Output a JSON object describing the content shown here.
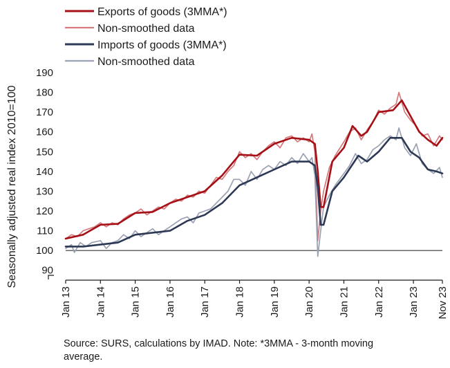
{
  "colors": {
    "exports_smooth": "#a50f15",
    "exports_raw": "#d4797d",
    "imports_smooth": "#2c3854",
    "imports_raw": "#99a1b3",
    "baseline": "#1a1a1a"
  },
  "chart_data": {
    "type": "line",
    "ylabel": "Seasonally adjusted real index 2010=100",
    "xlabel": "",
    "ylim": [
      85,
      190
    ],
    "y_ticks": [
      90,
      100,
      110,
      120,
      130,
      140,
      150,
      160,
      170,
      180,
      190
    ],
    "y_tick_labels": [
      "90",
      "100",
      "110",
      "120",
      "130",
      "140",
      "150",
      "160",
      "170",
      "180",
      "190"
    ],
    "x_tick_labels": [
      "Jan 13",
      "Jan 14",
      "Jan 15",
      "Jan 16",
      "Jan 17",
      "Jan 18",
      "Jan 19",
      "Jan 20",
      "Jan 21",
      "Jan 22",
      "Jan 23",
      "Nov 23"
    ],
    "x_range": [
      "2013-01",
      "2023-11"
    ],
    "reference_line": 100,
    "grid": false,
    "legend_position": "top-left",
    "series": [
      {
        "name": "Exports of goods (3MMA*)",
        "color": "exports_smooth",
        "style": "thick",
        "points": [
          [
            "2013-01",
            106
          ],
          [
            "2013-07",
            108
          ],
          [
            "2014-01",
            113
          ],
          [
            "2014-07",
            113.5
          ],
          [
            "2015-01",
            119
          ],
          [
            "2015-07",
            119.5
          ],
          [
            "2016-01",
            124
          ],
          [
            "2016-07",
            127
          ],
          [
            "2017-01",
            130
          ],
          [
            "2017-07",
            138
          ],
          [
            "2018-01",
            148.5
          ],
          [
            "2018-07",
            148
          ],
          [
            "2019-01",
            154
          ],
          [
            "2019-07",
            157
          ],
          [
            "2020-01",
            156
          ],
          [
            "2020-03",
            154
          ],
          [
            "2020-04",
            140
          ],
          [
            "2020-05",
            122
          ],
          [
            "2020-06",
            122
          ],
          [
            "2020-09",
            145
          ],
          [
            "2021-01",
            152
          ],
          [
            "2021-04",
            163
          ],
          [
            "2021-07",
            158
          ],
          [
            "2021-09",
            160
          ],
          [
            "2022-01",
            170
          ],
          [
            "2022-06",
            171
          ],
          [
            "2022-09",
            176
          ],
          [
            "2022-12",
            168
          ],
          [
            "2023-03",
            160
          ],
          [
            "2023-06",
            156
          ],
          [
            "2023-09",
            153
          ],
          [
            "2023-11",
            157
          ]
        ]
      },
      {
        "name": "Non-smoothed data",
        "color": "exports_raw",
        "style": "thin",
        "points": [
          [
            "2013-01",
            106
          ],
          [
            "2013-03",
            108
          ],
          [
            "2013-05",
            107
          ],
          [
            "2013-07",
            110
          ],
          [
            "2013-09",
            111
          ],
          [
            "2013-11",
            112
          ],
          [
            "2014-01",
            114
          ],
          [
            "2014-03",
            112
          ],
          [
            "2014-05",
            114
          ],
          [
            "2014-07",
            113
          ],
          [
            "2014-09",
            116
          ],
          [
            "2014-11",
            118
          ],
          [
            "2015-01",
            119
          ],
          [
            "2015-03",
            121
          ],
          [
            "2015-05",
            118
          ],
          [
            "2015-07",
            120
          ],
          [
            "2015-09",
            122
          ],
          [
            "2015-11",
            121
          ],
          [
            "2016-01",
            124
          ],
          [
            "2016-03",
            126
          ],
          [
            "2016-05",
            125
          ],
          [
            "2016-07",
            128
          ],
          [
            "2016-09",
            127
          ],
          [
            "2016-11",
            130
          ],
          [
            "2017-01",
            129
          ],
          [
            "2017-03",
            133
          ],
          [
            "2017-05",
            137
          ],
          [
            "2017-07",
            136
          ],
          [
            "2017-09",
            140
          ],
          [
            "2017-11",
            143
          ],
          [
            "2018-01",
            150
          ],
          [
            "2018-03",
            147
          ],
          [
            "2018-05",
            149
          ],
          [
            "2018-07",
            146
          ],
          [
            "2018-09",
            150
          ],
          [
            "2018-11",
            153
          ],
          [
            "2019-01",
            155
          ],
          [
            "2019-03",
            152
          ],
          [
            "2019-05",
            157
          ],
          [
            "2019-07",
            158
          ],
          [
            "2019-09",
            155
          ],
          [
            "2019-11",
            157
          ],
          [
            "2020-01",
            155
          ],
          [
            "2020-02",
            159
          ],
          [
            "2020-03",
            150
          ],
          [
            "2020-04",
            105
          ],
          [
            "2020-05",
            120
          ],
          [
            "2020-06",
            130
          ],
          [
            "2020-08",
            142
          ],
          [
            "2020-10",
            148
          ],
          [
            "2021-01",
            155
          ],
          [
            "2021-03",
            160
          ],
          [
            "2021-05",
            162
          ],
          [
            "2021-07",
            156
          ],
          [
            "2021-09",
            161
          ],
          [
            "2021-11",
            165
          ],
          [
            "2022-01",
            171
          ],
          [
            "2022-03",
            169
          ],
          [
            "2022-05",
            172
          ],
          [
            "2022-07",
            174
          ],
          [
            "2022-08",
            180
          ],
          [
            "2022-10",
            170
          ],
          [
            "2022-12",
            166
          ],
          [
            "2023-02",
            163
          ],
          [
            "2023-04",
            158
          ],
          [
            "2023-06",
            159
          ],
          [
            "2023-08",
            153
          ],
          [
            "2023-10",
            158
          ],
          [
            "2023-11",
            156
          ]
        ]
      },
      {
        "name": "Imports of goods (3MMA*)",
        "color": "imports_smooth",
        "style": "thick",
        "points": [
          [
            "2013-01",
            102
          ],
          [
            "2013-07",
            102
          ],
          [
            "2014-01",
            103
          ],
          [
            "2014-07",
            104
          ],
          [
            "2015-01",
            108
          ],
          [
            "2015-07",
            109
          ],
          [
            "2016-01",
            110
          ],
          [
            "2016-07",
            115
          ],
          [
            "2017-01",
            118
          ],
          [
            "2017-07",
            124
          ],
          [
            "2018-01",
            133
          ],
          [
            "2018-07",
            137
          ],
          [
            "2019-01",
            141
          ],
          [
            "2019-07",
            145
          ],
          [
            "2020-01",
            145
          ],
          [
            "2020-03",
            143
          ],
          [
            "2020-04",
            132
          ],
          [
            "2020-05",
            113
          ],
          [
            "2020-06",
            113
          ],
          [
            "2020-09",
            130
          ],
          [
            "2021-01",
            137
          ],
          [
            "2021-06",
            148
          ],
          [
            "2021-09",
            145
          ],
          [
            "2022-01",
            150
          ],
          [
            "2022-05",
            157
          ],
          [
            "2022-09",
            157
          ],
          [
            "2022-12",
            150
          ],
          [
            "2023-03",
            147
          ],
          [
            "2023-06",
            141
          ],
          [
            "2023-09",
            140
          ],
          [
            "2023-11",
            139
          ]
        ]
      },
      {
        "name": "Non-smoothed data",
        "color": "imports_raw",
        "style": "thin",
        "points": [
          [
            "2013-01",
            101
          ],
          [
            "2013-03",
            103
          ],
          [
            "2013-04",
            99
          ],
          [
            "2013-06",
            104
          ],
          [
            "2013-08",
            102
          ],
          [
            "2013-10",
            104
          ],
          [
            "2014-01",
            105
          ],
          [
            "2014-03",
            101
          ],
          [
            "2014-05",
            104
          ],
          [
            "2014-07",
            105
          ],
          [
            "2014-09",
            108
          ],
          [
            "2014-11",
            106
          ],
          [
            "2015-01",
            110
          ],
          [
            "2015-03",
            107
          ],
          [
            "2015-05",
            109
          ],
          [
            "2015-07",
            111
          ],
          [
            "2015-09",
            108
          ],
          [
            "2015-11",
            110
          ],
          [
            "2016-01",
            112
          ],
          [
            "2016-03",
            114
          ],
          [
            "2016-05",
            116
          ],
          [
            "2016-07",
            117
          ],
          [
            "2016-09",
            114
          ],
          [
            "2016-11",
            119
          ],
          [
            "2017-01",
            120
          ],
          [
            "2017-03",
            121
          ],
          [
            "2017-05",
            124
          ],
          [
            "2017-07",
            127
          ],
          [
            "2017-09",
            130
          ],
          [
            "2017-11",
            136
          ],
          [
            "2018-01",
            136
          ],
          [
            "2018-03",
            133
          ],
          [
            "2018-05",
            140
          ],
          [
            "2018-07",
            136
          ],
          [
            "2018-09",
            141
          ],
          [
            "2018-11",
            143
          ],
          [
            "2019-01",
            141
          ],
          [
            "2019-03",
            145
          ],
          [
            "2019-05",
            143
          ],
          [
            "2019-07",
            147
          ],
          [
            "2019-09",
            144
          ],
          [
            "2019-11",
            149
          ],
          [
            "2020-01",
            145
          ],
          [
            "2020-02",
            147
          ],
          [
            "2020-03",
            138
          ],
          [
            "2020-04",
            97
          ],
          [
            "2020-05",
            110
          ],
          [
            "2020-06",
            122
          ],
          [
            "2020-08",
            128
          ],
          [
            "2020-10",
            133
          ],
          [
            "2021-01",
            139
          ],
          [
            "2021-03",
            143
          ],
          [
            "2021-05",
            149
          ],
          [
            "2021-07",
            144
          ],
          [
            "2021-09",
            146
          ],
          [
            "2021-11",
            151
          ],
          [
            "2022-01",
            153
          ],
          [
            "2022-03",
            156
          ],
          [
            "2022-05",
            158
          ],
          [
            "2022-07",
            156
          ],
          [
            "2022-08",
            162
          ],
          [
            "2022-10",
            152
          ],
          [
            "2022-12",
            148
          ],
          [
            "2023-02",
            154
          ],
          [
            "2023-04",
            144
          ],
          [
            "2023-06",
            141
          ],
          [
            "2023-08",
            139
          ],
          [
            "2023-10",
            142
          ],
          [
            "2023-11",
            137
          ]
        ]
      }
    ]
  },
  "footnote": {
    "line1": "Source: SURS, calculations by IMAD. Note: *3MMA - 3-month moving",
    "line2": "average."
  }
}
